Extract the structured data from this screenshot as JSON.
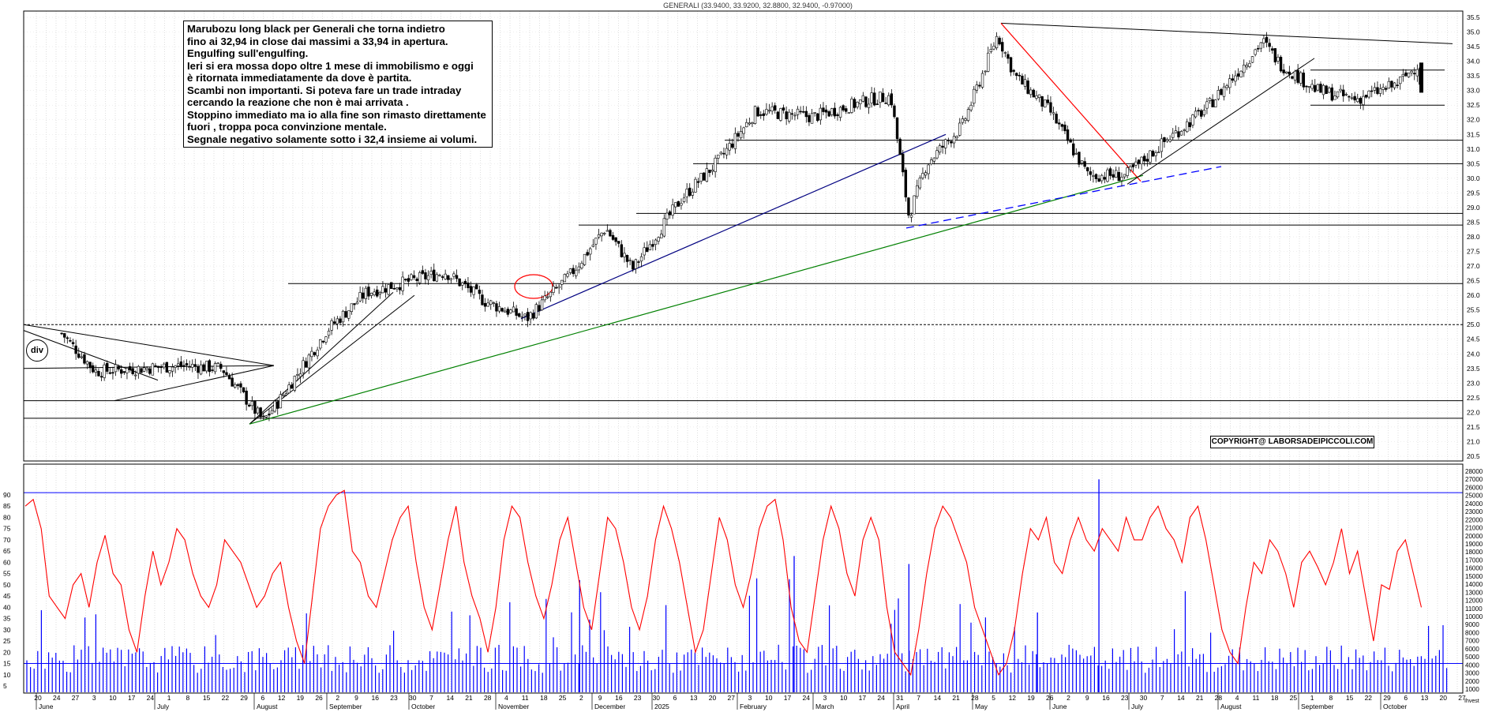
{
  "header": {
    "title": "GENERALI (33.9400, 33.9200, 32.8800, 32.9400, -0.97000)"
  },
  "comment": {
    "lines": [
      "Marubozu long black per Generali che torna indietro",
      "fino ai 32,94 in close dai massimi a 33,94 in apertura.",
      "Engulfing sull'engulfing.",
      "Ieri si era mossa dopo oltre 1 mese di immobilismo e oggi",
      "è ritornata immediatamente da dove è partita.",
      "Scambi non importanti. Si poteva fare un trade intraday",
      "cercando la reazione che non è mai arrivata .",
      "Stoppino immediato ma io alla fine son rimasto direttamente",
      "fuori , troppa poca convinzione mentale.",
      "Segnale negativo solamente sotto i 32,4 insieme ai volumi."
    ]
  },
  "copyright": "COPYRIGHT@ LABORSADEIPICCOLI.COM",
  "badge": "div",
  "colors": {
    "up_candle": "#ffffff",
    "down_candle": "#000000",
    "rsi_line": "#ff0000",
    "volume_bar": "#0000ff",
    "uptrend_green": "#008000",
    "uptrend_blue": "#000080",
    "downtrend_red": "#ff0000",
    "dashed_blue": "#0000ff"
  },
  "chart_data": [
    {
      "type": "candlestick",
      "ylim": [
        20.5,
        35.5
      ],
      "yticks": [
        "35.5",
        "35.0",
        "34.5",
        "34.0",
        "33.5",
        "33.0",
        "32.5",
        "32.0",
        "31.5",
        "31.0",
        "30.5",
        "30.0",
        "29.5",
        "29.0",
        "28.5",
        "28.0",
        "27.5",
        "27.0",
        "26.5",
        "26.0",
        "25.5",
        "25.0",
        "24.5",
        "24.0",
        "23.5",
        "23.0",
        "22.5",
        "22.0",
        "21.5",
        "21.0",
        "20.5"
      ],
      "horizontal_levels": [
        31.3,
        30.5,
        28.8,
        28.4,
        26.4,
        25.0,
        22.4,
        21.8
      ],
      "range_box": {
        "top": 33.7,
        "bottom": 32.5
      },
      "key_points": [
        {
          "date": "2024-06-20",
          "close": 24.7
        },
        {
          "date": "2024-06-24",
          "close": 23.4
        },
        {
          "date": "2024-07-10",
          "close": 23.6
        },
        {
          "date": "2024-07-22",
          "close": 23.5
        },
        {
          "date": "2024-08-05",
          "close": 21.7
        },
        {
          "date": "2024-08-12",
          "close": 22.4
        },
        {
          "date": "2024-09-02",
          "close": 24.8
        },
        {
          "date": "2024-09-16",
          "close": 26.1
        },
        {
          "date": "2024-10-14",
          "close": 26.8
        },
        {
          "date": "2024-10-28",
          "close": 25.8
        },
        {
          "date": "2024-11-11",
          "close": 25.2
        },
        {
          "date": "2024-11-25",
          "close": 26.7
        },
        {
          "date": "2024-12-09",
          "close": 28.3
        },
        {
          "date": "2024-12-23",
          "close": 26.9
        },
        {
          "date": "2025-01-13",
          "close": 29.3
        },
        {
          "date": "2025-01-27",
          "close": 30.6
        },
        {
          "date": "2025-02-10",
          "close": 32.3
        },
        {
          "date": "2025-03-03",
          "close": 32.1
        },
        {
          "date": "2025-03-24",
          "close": 32.7
        },
        {
          "date": "2025-03-31",
          "close": 32.8
        },
        {
          "date": "2025-04-07",
          "close": 28.7
        },
        {
          "date": "2025-04-14",
          "close": 30.5
        },
        {
          "date": "2025-04-28",
          "close": 31.8
        },
        {
          "date": "2025-05-12",
          "close": 34.9
        },
        {
          "date": "2025-05-19",
          "close": 33.5
        },
        {
          "date": "2025-06-02",
          "close": 32.3
        },
        {
          "date": "2025-06-16",
          "close": 30.1
        },
        {
          "date": "2025-06-30",
          "close": 30.1
        },
        {
          "date": "2025-07-14",
          "close": 31.3
        },
        {
          "date": "2025-07-28",
          "close": 32.4
        },
        {
          "date": "2025-08-11",
          "close": 33.9
        },
        {
          "date": "2025-08-18",
          "close": 34.7
        },
        {
          "date": "2025-08-25",
          "close": 33.9
        },
        {
          "date": "2025-09-08",
          "close": 33.0
        },
        {
          "date": "2025-09-22",
          "close": 32.7
        },
        {
          "date": "2025-10-06",
          "close": 33.2
        },
        {
          "date": "2025-10-13",
          "close": 33.9
        },
        {
          "date": "2025-10-14",
          "close": 32.94
        }
      ]
    },
    {
      "type": "line",
      "name_left_axis": "",
      "ylim": [
        10,
        95
      ],
      "yticks": [
        "90",
        "85",
        "80",
        "75",
        "70",
        "65",
        "60",
        "55",
        "50",
        "45",
        "40",
        "35",
        "30",
        "25",
        "20",
        "15",
        "10",
        "5"
      ],
      "reference_levels": [
        91,
        15
      ],
      "series": [
        {
          "values": [
            85,
            88,
            75,
            45,
            40,
            35,
            50,
            55,
            40,
            60,
            72,
            55,
            50,
            30,
            20,
            45,
            65,
            50,
            60,
            75,
            70,
            55,
            45,
            40,
            50,
            70,
            65,
            60,
            50,
            40,
            45,
            55,
            60,
            40,
            25,
            15,
            45,
            75,
            85,
            90,
            92,
            65,
            60,
            45,
            40,
            55,
            70,
            80,
            85,
            60,
            40,
            30,
            50,
            70,
            85,
            60,
            45,
            35,
            20,
            40,
            70,
            85,
            80,
            60,
            45,
            35,
            50,
            70,
            80,
            60,
            40,
            30,
            55,
            80,
            75,
            60,
            40,
            30,
            45,
            70,
            85,
            75,
            60,
            40,
            20,
            30,
            55,
            80,
            70,
            50,
            40,
            55,
            75,
            85,
            88,
            70,
            40,
            25,
            20,
            45,
            70,
            85,
            75,
            55,
            45,
            70,
            80,
            70,
            40,
            20,
            15,
            10,
            30,
            55,
            75,
            85,
            80,
            70,
            60,
            40,
            30,
            20,
            10,
            15,
            30,
            55,
            75,
            70,
            80,
            60,
            55,
            70,
            80,
            70,
            65,
            75,
            70,
            65,
            80,
            70,
            70,
            80,
            85,
            75,
            70,
            60,
            80,
            85,
            70,
            50,
            30,
            20,
            15,
            40,
            60,
            55,
            70,
            65,
            55,
            40,
            60,
            65,
            58,
            50,
            60,
            75,
            55,
            65,
            45,
            25,
            50,
            48,
            65,
            70,
            55,
            40
          ],
          "color": "#ff0000"
        }
      ]
    },
    {
      "type": "bar",
      "right_axis_ticks": [
        "28000",
        "27000",
        "26000",
        "25000",
        "24000",
        "23000",
        "22000",
        "21000",
        "20000",
        "19000",
        "18000",
        "17000",
        "16000",
        "15000",
        "14000",
        "13000",
        "12000",
        "11000",
        "10000",
        "9000",
        "8000",
        "7000",
        "6000",
        "5000",
        "4000",
        "3000",
        "2000",
        "1000"
      ],
      "ylim": [
        0,
        28000
      ],
      "volume_spikes": [
        {
          "date": "2025-04-07",
          "value": 16500
        },
        {
          "date": "2025-05-28",
          "value": 10500
        },
        {
          "date": "2025-06-20",
          "value": 27000
        },
        {
          "date": "2024-11-28",
          "value": 14500
        },
        {
          "date": "2025-02-24",
          "value": 17500
        }
      ]
    }
  ],
  "x_axis": {
    "day_labels": [
      "20",
      "24",
      "27",
      "3",
      "10",
      "17",
      "24",
      "1",
      "8",
      "15",
      "22",
      "29",
      "6",
      "12",
      "19",
      "26",
      "2",
      "9",
      "16",
      "23",
      "30",
      "7",
      "14",
      "21",
      "28",
      "4",
      "11",
      "18",
      "25",
      "2",
      "9",
      "16",
      "23",
      "30",
      "6",
      "13",
      "20",
      "27",
      "3",
      "10",
      "17",
      "24",
      "3",
      "10",
      "17",
      "24",
      "31",
      "7",
      "14",
      "21",
      "28",
      "5",
      "12",
      "19",
      "26",
      "2",
      "9",
      "16",
      "23",
      "30",
      "7",
      "14",
      "21",
      "28",
      "4",
      "11",
      "18",
      "25",
      "1",
      "8",
      "15",
      "22",
      "29",
      "6",
      "13",
      "20",
      "27"
    ],
    "month_labels": [
      "June",
      "July",
      "August",
      "September",
      "October",
      "November",
      "December",
      "2025",
      "February",
      "March",
      "April",
      "May",
      "June",
      "July",
      "August",
      "September",
      "October"
    ],
    "extra_label": "Ihvest"
  }
}
